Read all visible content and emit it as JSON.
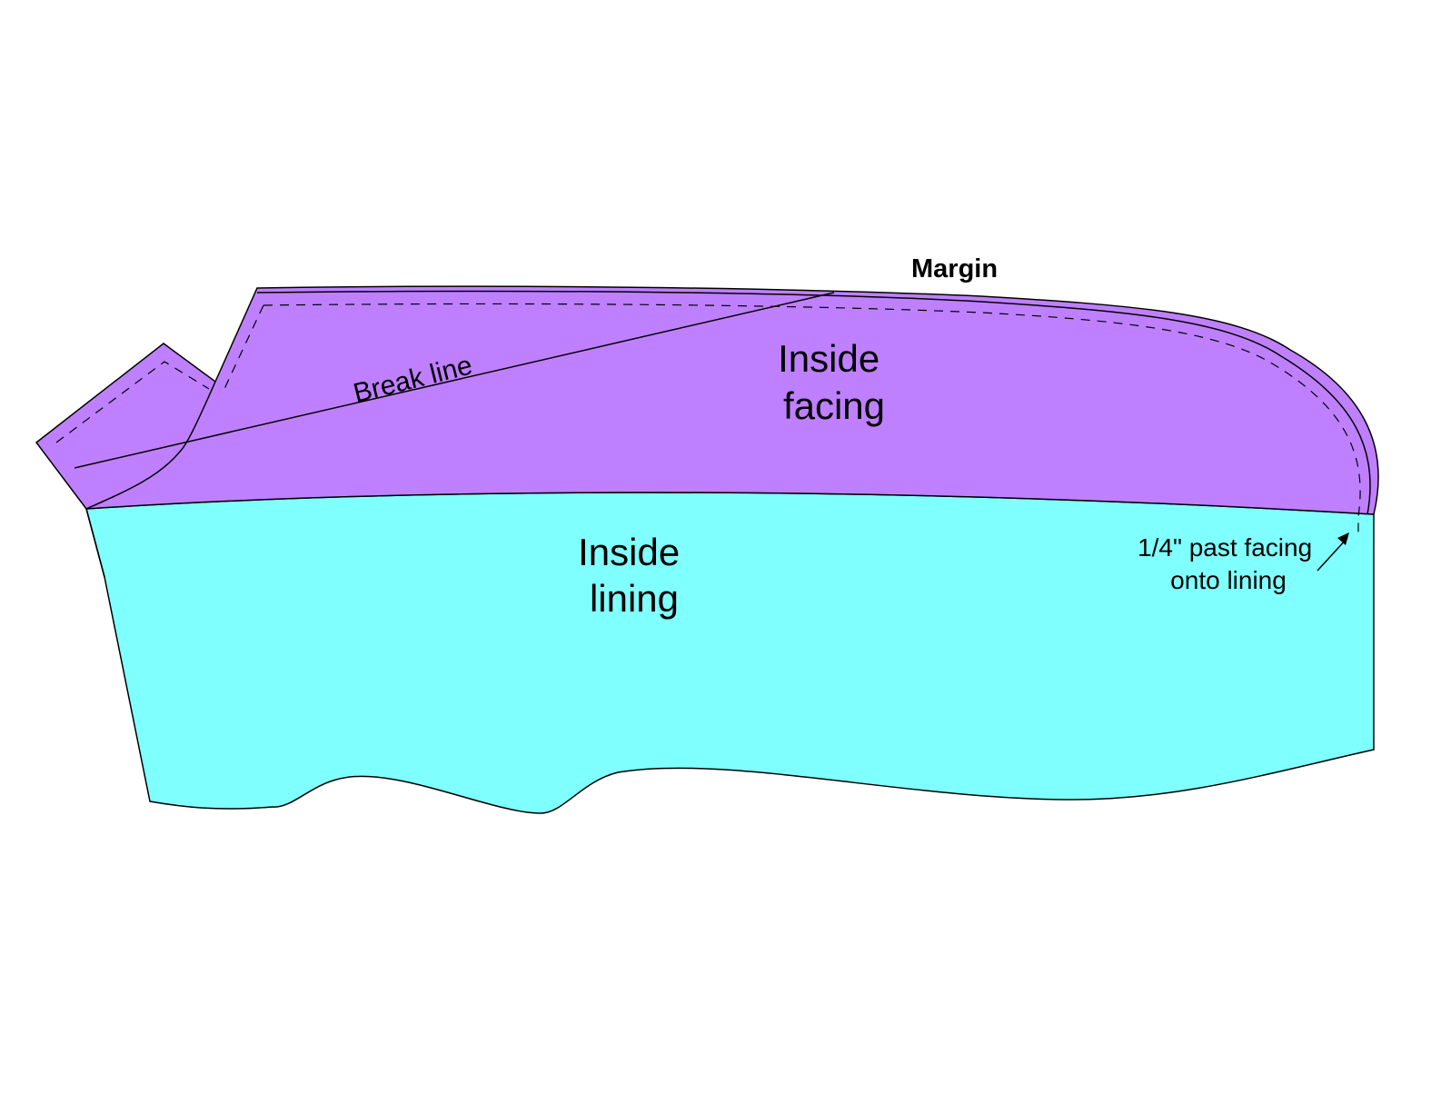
{
  "labels": {
    "margin": "Margin",
    "break_line": "Break line",
    "inside_facing": [
      "Inside",
      "facing"
    ],
    "inside_lining": [
      "Inside",
      "lining"
    ],
    "note": [
      "1/4\" past facing",
      "onto lining"
    ]
  },
  "colors": {
    "facing": "#bf80ff",
    "lining": "#80ffff",
    "outline": "#000000",
    "background": "#ffffff"
  }
}
